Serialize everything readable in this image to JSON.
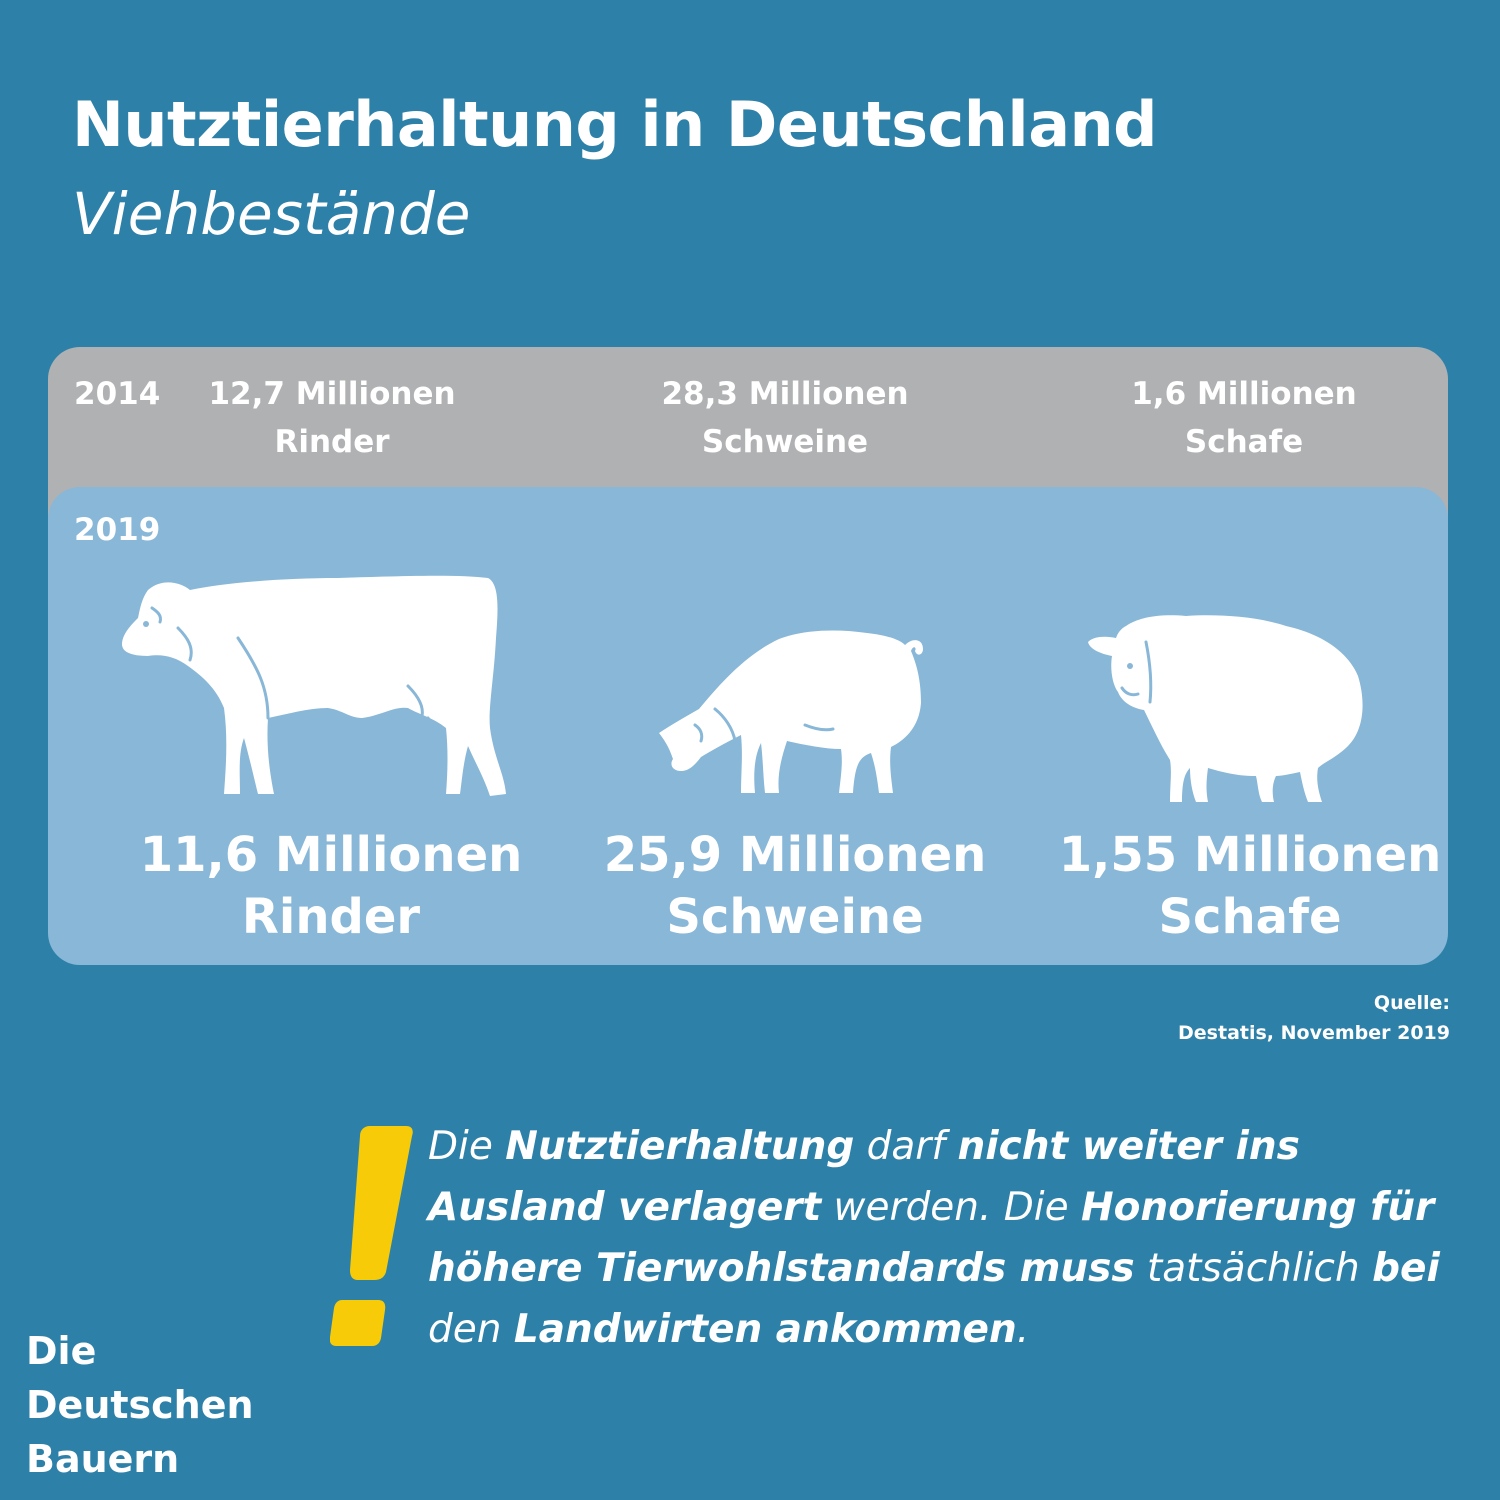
{
  "header": {
    "title": "Nutztierhaltung in Deutschland",
    "subtitle": "Viehbestände"
  },
  "y2014": {
    "year": "2014",
    "stats": [
      {
        "value": "12,7 Millionen",
        "label": "Rinder"
      },
      {
        "value": "28,3 Millionen",
        "label": "Schweine"
      },
      {
        "value": "1,6 Millionen",
        "label": "Schafe"
      }
    ]
  },
  "y2019": {
    "year": "2019",
    "stats": [
      {
        "value": "11,6 Millionen",
        "label": "Rinder",
        "icon": "cow-icon"
      },
      {
        "value": "25,9 Millionen",
        "label": "Schweine",
        "icon": "pig-icon"
      },
      {
        "value": "1,55 Millionen",
        "label": "Schafe",
        "icon": "sheep-icon"
      }
    ]
  },
  "source": {
    "label": "Quelle:",
    "text": "Destatis, November 2019"
  },
  "statement": {
    "segments": [
      {
        "text": "Die ",
        "bold": false
      },
      {
        "text": "Nutztierhaltung",
        "bold": true
      },
      {
        "text": " darf ",
        "bold": false
      },
      {
        "text": "nicht weiter ins Ausland verlagert",
        "bold": true
      },
      {
        "text": " werden. Die ",
        "bold": false
      },
      {
        "text": "Honorierung für höhere Tierwohlstandards muss",
        "bold": true
      },
      {
        "text": " tatsächlich ",
        "bold": false
      },
      {
        "text": "bei",
        "bold": true
      },
      {
        "text": " den ",
        "bold": false
      },
      {
        "text": "Landwirten ankommen",
        "bold": true
      },
      {
        "text": ".",
        "bold": false
      }
    ]
  },
  "logo": {
    "line1": "Die",
    "line2": "Deutschen",
    "line3": "Bauern"
  },
  "colors": {
    "background": "#2d80a8",
    "panel_2014": "#b0b1b3",
    "panel_2019": "#88b7d8",
    "exclamation": "#f7cb08",
    "text": "#ffffff"
  }
}
